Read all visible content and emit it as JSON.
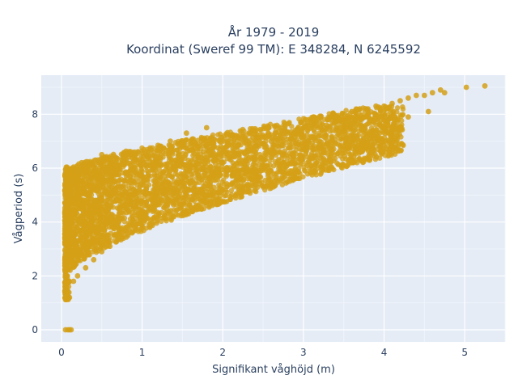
{
  "chart_data": {
    "type": "scatter",
    "title": "År 1979 - 2019",
    "subtitle": "Koordinat (Sweref 99 TM): E 348284, N 6245592",
    "xlabel": "Signifikant våghöjd (m)",
    "ylabel": "Vågperiod (s)",
    "xlim": [
      -0.25,
      5.5
    ],
    "ylim": [
      -0.45,
      9.45
    ],
    "xticks": [
      0,
      1,
      2,
      3,
      4,
      5
    ],
    "yticks": [
      0,
      2,
      4,
      6,
      8
    ],
    "grid": true,
    "legend": "none",
    "marker_color": "#D4A017",
    "plot_background": "#E5ECF6",
    "series": [
      {
        "values_description_free": true,
        "x": [
          0.05,
          0.08,
          0.1,
          0.12,
          0.05,
          0.1,
          0.15,
          0.2,
          0.3,
          0.4,
          0.5,
          0.6,
          0.7,
          0.8,
          0.9,
          1.0,
          1.1,
          1.2,
          1.3,
          1.4,
          1.5,
          1.6,
          1.7,
          1.8,
          1.9,
          2.0,
          2.1,
          2.2,
          2.3,
          2.4,
          2.5,
          2.6,
          2.7,
          2.8,
          2.9,
          3.0,
          3.1,
          3.2,
          3.3,
          3.4,
          3.5,
          3.6,
          3.7,
          3.8,
          3.9,
          4.0,
          4.1,
          4.2,
          4.3,
          4.4,
          4.5,
          4.6,
          4.7,
          4.75,
          5.02,
          5.25,
          0.35,
          0.55,
          0.75,
          0.95,
          1.35,
          1.55,
          1.8,
          0.22,
          0.42,
          0.62,
          0.85,
          1.05,
          1.45,
          0.3,
          0.5,
          0.7,
          0.1,
          0.15,
          0.2,
          0.25,
          0.5,
          0.45,
          1.8,
          2.7,
          3.3,
          3.6,
          4.05,
          4.3,
          4.55
        ],
        "y": [
          0.0,
          0.0,
          0.0,
          0.0,
          1.5,
          1.2,
          1.8,
          2.0,
          2.3,
          2.6,
          2.9,
          3.1,
          3.4,
          3.7,
          4.0,
          4.2,
          4.5,
          4.7,
          4.9,
          5.1,
          5.3,
          5.5,
          5.7,
          5.9,
          6.0,
          6.2,
          6.3,
          6.5,
          6.6,
          6.8,
          6.9,
          7.0,
          7.1,
          7.3,
          7.4,
          7.5,
          7.6,
          7.7,
          7.8,
          7.9,
          8.0,
          8.1,
          8.2,
          8.2,
          8.3,
          8.3,
          8.4,
          8.5,
          8.6,
          8.7,
          8.7,
          8.8,
          8.9,
          8.8,
          9.0,
          9.05,
          5.6,
          6.0,
          6.3,
          6.6,
          7.0,
          7.3,
          7.5,
          4.0,
          4.8,
          5.3,
          5.7,
          6.1,
          6.5,
          3.0,
          3.5,
          3.9,
          5.0,
          5.5,
          5.9,
          6.2,
          6.5,
          6.3,
          6.8,
          6.8,
          6.9,
          7.6,
          7.8,
          7.9,
          8.1
        ]
      }
    ]
  }
}
